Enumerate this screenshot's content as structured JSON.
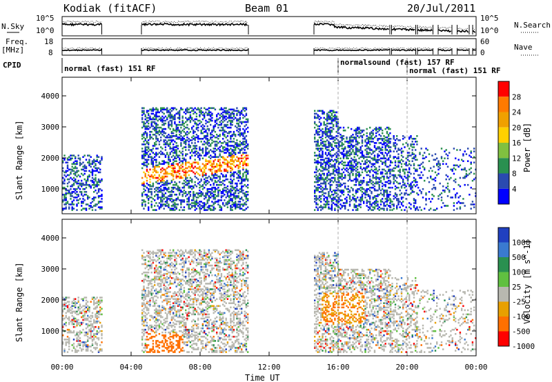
{
  "chart_data": [
    {
      "type": "heatmap",
      "header": {
        "station": "Kodiak (fitACF)",
        "beam": "Beam 01",
        "date": "20/Jul/2011"
      },
      "panel": "noise_and_params",
      "left_labels": {
        "nsky": "N.Sky",
        "freq": "Freq.",
        "freq_unit": "[MHz]",
        "cpid": "CPID"
      },
      "right_labels": {
        "nsearch": "N.Search",
        "nave": "Nave"
      },
      "noise_ticks": [
        "10^5",
        "10^0"
      ],
      "noise_ticks_right": [
        "10^5",
        "10^0"
      ],
      "freq_ticks": [
        "18",
        "8"
      ],
      "nave_ticks": [
        "60",
        "0"
      ],
      "cpid_segments": [
        {
          "label": "normal (fast) 151 RF",
          "start_hour": 0.0
        },
        {
          "label": "normalsound (fast) 157 RF",
          "start_hour": 16.0
        },
        {
          "label": "normal (fast) 151 RF",
          "start_hour": 20.0
        }
      ]
    },
    {
      "type": "heatmap",
      "panel": "power",
      "ylabel": "Slant Range [km]",
      "yticks": [
        1000,
        2000,
        3000,
        4000
      ],
      "ylim": [
        200,
        4600
      ],
      "colorbar_label": "Power [dB]",
      "colorbar_ticks": [
        "28",
        "24",
        "20",
        "16",
        "12",
        "8",
        "4"
      ],
      "colors": [
        "#ff0000",
        "#ff7a00",
        "#f0a000",
        "#ffd000",
        "#80c040",
        "#2a9050",
        "#2a4ab0",
        "#0000ff"
      ],
      "data_blocks": [
        {
          "x": [
            0.0,
            2.3
          ],
          "y": [
            300,
            2000
          ],
          "level": "low-mid"
        },
        {
          "x": [
            4.6,
            10.8
          ],
          "y": [
            300,
            3500
          ],
          "level": "mid-high"
        },
        {
          "x": [
            14.6,
            20.5
          ],
          "y": [
            300,
            3500
          ],
          "level": "mid"
        },
        {
          "x": [
            20.5,
            24.0
          ],
          "y": [
            300,
            2800
          ],
          "level": "low"
        }
      ]
    },
    {
      "type": "heatmap",
      "panel": "velocity",
      "ylabel": "Slant Range [km]",
      "xlabel": "Time UT",
      "xticks": [
        "00:00",
        "04:00",
        "08:00",
        "12:00",
        "16:00",
        "20:00",
        "00:00"
      ],
      "yticks": [
        1000,
        2000,
        3000,
        4000
      ],
      "ylim": [
        200,
        4600
      ],
      "colorbar_label": "Velocity [m s^-1]",
      "colorbar_ticks": [
        "1000",
        "500",
        "100",
        "25",
        "-25",
        "-100",
        "-500",
        "-1000"
      ],
      "colors": [
        "#2040c0",
        "#3a7ad0",
        "#2a9050",
        "#60c040",
        "#b8b8b0",
        "#e8a000",
        "#ff7000",
        "#ff0000"
      ]
    }
  ]
}
